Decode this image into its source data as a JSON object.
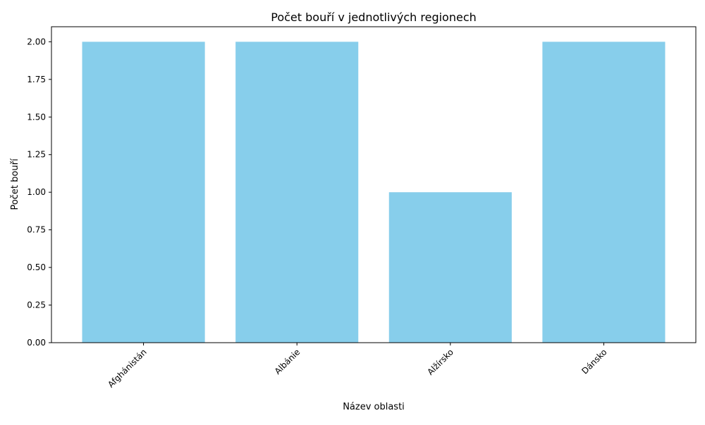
{
  "chart_data": {
    "type": "bar",
    "title": "Počet bouří v jednotlivých regionech",
    "xlabel": "Název oblasti",
    "ylabel": "Počet bouří",
    "categories": [
      "Afghánistán",
      "Albánie",
      "Alžírsko",
      "Dánsko"
    ],
    "values": [
      2,
      2,
      1,
      2
    ],
    "ylim": [
      0,
      2.1
    ],
    "yticks": [
      "0.00",
      "0.25",
      "0.50",
      "0.75",
      "1.00",
      "1.25",
      "1.50",
      "1.75",
      "2.00"
    ],
    "grid": false,
    "legend": "none",
    "bar_color": "#87ceeb",
    "xtick_rotation": 45
  }
}
